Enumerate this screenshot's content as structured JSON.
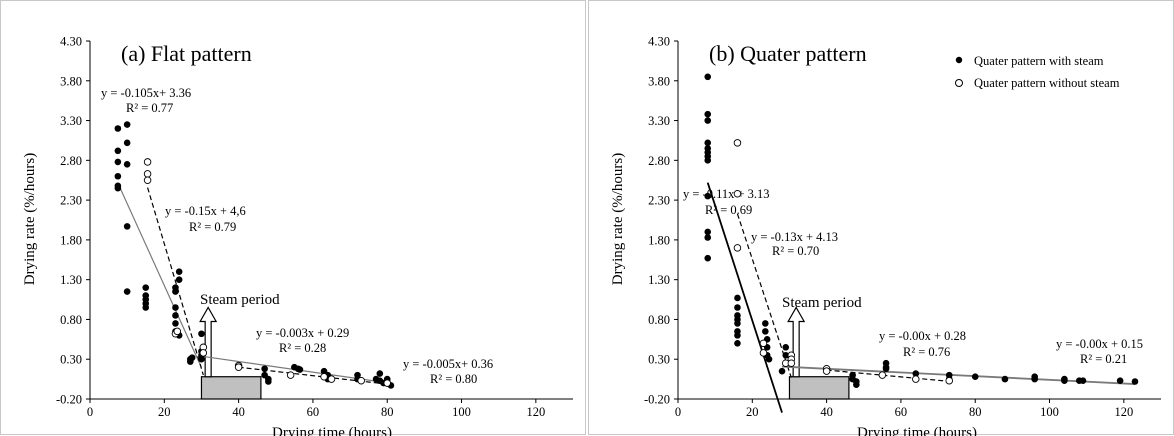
{
  "chart_data": [
    {
      "type": "scatter",
      "title": "(a) Flat pattern",
      "xlabel": "Drying time (hours)",
      "ylabel": "Drying rate (%/hours)",
      "xlim": [
        0,
        130
      ],
      "ylim": [
        -0.2,
        4.3
      ],
      "xticks": [
        "0",
        "20",
        "40",
        "60",
        "80",
        "100",
        "120"
      ],
      "yticks": [
        "-0.20",
        "0.30",
        "0.80",
        "1.30",
        "1.80",
        "2.30",
        "2.80",
        "3.30",
        "3.80",
        "4.30"
      ],
      "grid": false,
      "series": [
        {
          "marker": "filled",
          "points": [
            [
              7.5,
              3.2
            ],
            [
              7.5,
              2.92
            ],
            [
              7.5,
              2.78
            ],
            [
              7.5,
              2.6
            ],
            [
              7.5,
              2.48
            ],
            [
              7.5,
              2.45
            ],
            [
              10,
              3.25
            ],
            [
              10,
              3.02
            ],
            [
              10,
              2.75
            ],
            [
              10,
              1.97
            ],
            [
              10,
              1.15
            ],
            [
              15,
              1.2
            ],
            [
              15,
              1.1
            ],
            [
              15,
              1.05
            ],
            [
              15,
              1.0
            ],
            [
              15,
              0.95
            ],
            [
              23,
              0.65
            ],
            [
              23,
              0.75
            ],
            [
              23,
              0.85
            ],
            [
              23,
              0.95
            ],
            [
              23,
              1.15
            ],
            [
              23,
              1.2
            ],
            [
              24,
              1.4
            ],
            [
              24,
              1.3
            ],
            [
              24,
              0.6
            ],
            [
              27,
              0.3
            ],
            [
              27,
              0.27
            ],
            [
              27.5,
              0.32
            ],
            [
              30,
              0.62
            ],
            [
              30,
              0.4
            ],
            [
              30,
              0.35
            ],
            [
              30,
              0.3
            ],
            [
              47,
              0.18
            ],
            [
              47,
              0.1
            ],
            [
              48,
              0.05
            ],
            [
              48,
              0.02
            ],
            [
              55,
              0.2
            ],
            [
              56,
              0.18
            ],
            [
              56.5,
              0.17
            ],
            [
              63,
              0.15
            ],
            [
              64,
              0.1
            ],
            [
              64,
              0.05
            ],
            [
              72,
              0.1
            ],
            [
              72,
              0.05
            ],
            [
              77,
              0.05
            ],
            [
              78,
              0.12
            ],
            [
              78,
              0.03
            ],
            [
              79,
              0.0
            ],
            [
              80,
              0.05
            ],
            [
              80,
              0.02
            ],
            [
              81,
              -0.03
            ]
          ]
        },
        {
          "marker": "open",
          "points": [
            [
              15.5,
              2.78
            ],
            [
              15.5,
              2.63
            ],
            [
              15.5,
              2.55
            ],
            [
              23,
              0.62
            ],
            [
              23.5,
              0.65
            ],
            [
              30.5,
              0.45
            ],
            [
              30.5,
              0.38
            ],
            [
              40,
              0.22
            ],
            [
              40,
              0.2
            ],
            [
              54,
              0.1
            ],
            [
              63,
              0.08
            ],
            [
              65,
              0.05
            ],
            [
              73,
              0.03
            ],
            [
              80,
              0.0
            ]
          ]
        }
      ],
      "fit_lines": [
        {
          "style": "solid",
          "x": [
            7.5,
            30
          ],
          "equation": "y = -0.105x+ 3.36",
          "r2": "R² = 0.77"
        },
        {
          "style": "dashed",
          "x": [
            15.5,
            30.5
          ],
          "equation": "y = -0.15x + 4,6",
          "r2": "R² = 0.79"
        },
        {
          "style": "solid",
          "x": [
            30,
            81
          ],
          "equation": "y = -0.003x + 0.29",
          "r2": "R² = 0.28"
        },
        {
          "style": "dashed",
          "x": [
            40,
            80
          ],
          "equation": "y = -0.005x+ 0.36",
          "r2": "R² = 0.80"
        }
      ],
      "annotation": "Steam period",
      "steam_period_x": [
        30,
        46
      ]
    },
    {
      "type": "scatter",
      "title": "(b) Quater pattern",
      "xlabel": "Drying time (hours)",
      "ylabel": "Drying rate (%/hours)",
      "xlim": [
        0,
        130
      ],
      "ylim": [
        -0.2,
        4.3
      ],
      "xticks": [
        "0",
        "20",
        "40",
        "60",
        "80",
        "100",
        "120"
      ],
      "yticks": [
        "-0.20",
        "0.30",
        "0.80",
        "1.30",
        "1.80",
        "2.30",
        "2.80",
        "3.30",
        "3.80",
        "4.30"
      ],
      "grid": false,
      "legend_position": "top-right",
      "series": [
        {
          "name": "Quater pattern with steam",
          "marker": "filled",
          "points": [
            [
              8,
              3.85
            ],
            [
              8,
              3.38
            ],
            [
              8,
              3.3
            ],
            [
              8,
              3.02
            ],
            [
              8,
              2.95
            ],
            [
              8,
              2.9
            ],
            [
              8,
              2.85
            ],
            [
              8,
              2.8
            ],
            [
              8,
              2.35
            ],
            [
              8,
              1.9
            ],
            [
              8,
              1.83
            ],
            [
              8,
              1.57
            ],
            [
              16,
              1.07
            ],
            [
              16,
              0.95
            ],
            [
              16,
              0.85
            ],
            [
              16,
              0.8
            ],
            [
              16,
              0.75
            ],
            [
              16,
              0.65
            ],
            [
              16,
              0.6
            ],
            [
              16,
              0.5
            ],
            [
              23.5,
              0.75
            ],
            [
              23.5,
              0.65
            ],
            [
              24,
              0.55
            ],
            [
              24,
              0.45
            ],
            [
              24,
              0.35
            ],
            [
              24.5,
              0.3
            ],
            [
              28,
              0.15
            ],
            [
              29,
              0.45
            ],
            [
              29,
              0.35
            ],
            [
              47,
              0.1
            ],
            [
              47,
              0.05
            ],
            [
              48,
              0.02
            ],
            [
              48,
              -0.02
            ],
            [
              56,
              0.25
            ],
            [
              56,
              0.2
            ],
            [
              56,
              0.18
            ],
            [
              64,
              0.12
            ],
            [
              64,
              0.05
            ],
            [
              73,
              0.1
            ],
            [
              73,
              0.05
            ],
            [
              80,
              0.08
            ],
            [
              88,
              0.05
            ],
            [
              96,
              0.08
            ],
            [
              96,
              0.05
            ],
            [
              104,
              0.05
            ],
            [
              104,
              0.03
            ],
            [
              108,
              0.03
            ],
            [
              109,
              0.03
            ],
            [
              119,
              0.03
            ],
            [
              123,
              0.02
            ]
          ]
        },
        {
          "name": "Quater pattern without steam",
          "marker": "open",
          "points": [
            [
              16,
              3.02
            ],
            [
              16,
              2.38
            ],
            [
              16,
              1.7
            ],
            [
              23,
              0.5
            ],
            [
              23,
              0.38
            ],
            [
              29,
              0.25
            ],
            [
              30.5,
              0.35
            ],
            [
              30.5,
              0.3
            ],
            [
              30.5,
              0.25
            ],
            [
              40,
              0.18
            ],
            [
              40,
              0.15
            ],
            [
              55,
              0.1
            ],
            [
              64,
              0.05
            ],
            [
              73,
              0.03
            ]
          ]
        }
      ],
      "fit_lines": [
        {
          "style": "solid",
          "x": [
            8,
            28
          ],
          "equation": "y = -0.11x + 3.13",
          "r2": "R² = 0.69"
        },
        {
          "style": "dashed",
          "x": [
            16,
            30.5
          ],
          "equation": "y = -0.13x + 4.13",
          "r2": "R² = 0.70"
        },
        {
          "style": "solid",
          "x": [
            28,
            123
          ],
          "equation": "y = -0.00x + 0.15",
          "r2": "R² = 0.21"
        },
        {
          "style": "dashed",
          "x": [
            40,
            73
          ],
          "equation": "y = -0.00x + 0.28",
          "r2": "R² = 0.76"
        }
      ],
      "annotation": "Steam period",
      "steam_period_x": [
        30,
        46
      ]
    }
  ]
}
